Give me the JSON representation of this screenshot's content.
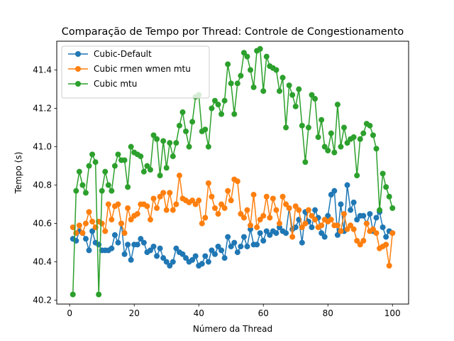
{
  "chart_data": {
    "type": "line",
    "title": "Comparação de Tempo por Thread: Controle de Congestionamento",
    "xlabel": "Número da Thread",
    "ylabel": "Tempo (s)",
    "xlim": [
      -4.0,
      105.0
    ],
    "ylim": [
      40.18,
      41.55
    ],
    "xticks": [
      0,
      20,
      40,
      60,
      80,
      100
    ],
    "yticks": [
      40.2,
      40.4,
      40.6,
      40.8,
      41.0,
      41.2,
      41.4
    ],
    "ytick_labels": [
      "40.2",
      "40.4",
      "40.6",
      "40.8",
      "41.0",
      "41.2",
      "41.4"
    ],
    "legend_position": "top-left",
    "grid": false,
    "x": [
      1,
      2,
      3,
      4,
      5,
      6,
      7,
      8,
      9,
      10,
      11,
      12,
      13,
      14,
      15,
      16,
      17,
      18,
      19,
      20,
      21,
      22,
      23,
      24,
      25,
      26,
      27,
      28,
      29,
      30,
      31,
      32,
      33,
      34,
      35,
      36,
      37,
      38,
      39,
      40,
      41,
      42,
      43,
      44,
      45,
      46,
      47,
      48,
      49,
      50,
      51,
      52,
      53,
      54,
      55,
      56,
      57,
      58,
      59,
      60,
      61,
      62,
      63,
      64,
      65,
      66,
      67,
      68,
      69,
      70,
      71,
      72,
      73,
      74,
      75,
      76,
      77,
      78,
      79,
      80,
      81,
      82,
      83,
      84,
      85,
      86,
      87,
      88,
      89,
      90,
      91,
      92,
      93,
      94,
      95,
      96,
      97,
      98,
      99,
      100
    ],
    "series": [
      {
        "name": "Cubic-Default",
        "color": "#1f77b4",
        "values": [
          40.52,
          40.51,
          40.56,
          40.55,
          40.52,
          40.46,
          40.56,
          40.5,
          40.49,
          40.46,
          40.46,
          40.46,
          40.47,
          40.54,
          40.5,
          40.6,
          40.44,
          40.49,
          40.41,
          40.49,
          40.49,
          40.52,
          40.5,
          40.45,
          40.46,
          40.48,
          40.43,
          40.47,
          40.42,
          40.4,
          40.38,
          40.4,
          40.47,
          40.45,
          40.44,
          40.42,
          40.4,
          40.41,
          40.43,
          40.38,
          40.39,
          40.43,
          40.4,
          40.46,
          40.44,
          40.48,
          40.46,
          40.42,
          40.53,
          40.48,
          40.5,
          40.45,
          40.48,
          40.53,
          40.48,
          40.57,
          40.49,
          40.49,
          40.55,
          40.51,
          40.56,
          40.54,
          40.56,
          40.55,
          40.58,
          40.56,
          40.55,
          40.68,
          40.57,
          40.58,
          40.62,
          40.5,
          40.66,
          40.61,
          40.58,
          40.67,
          40.63,
          40.55,
          40.53,
          40.64,
          40.75,
          40.77,
          40.54,
          40.7,
          40.56,
          40.8,
          40.67,
          40.71,
          40.62,
          40.64,
          40.64,
          40.6,
          40.65,
          40.56,
          40.63,
          40.66,
          40.58,
          40.53,
          40.56,
          40.55
        ]
      },
      {
        "name": "Cubic rmen wmen mtu",
        "color": "#ff7f0e",
        "values": [
          40.58,
          40.55,
          40.59,
          40.55,
          40.6,
          40.66,
          40.61,
          40.58,
          40.61,
          40.6,
          40.56,
          40.7,
          40.62,
          40.69,
          40.7,
          40.6,
          40.55,
          40.68,
          40.62,
          40.64,
          40.65,
          40.7,
          40.7,
          40.69,
          40.62,
          40.73,
          40.68,
          40.74,
          40.76,
          40.67,
          40.76,
          40.67,
          40.7,
          40.85,
          40.73,
          40.72,
          40.71,
          40.72,
          40.7,
          40.72,
          40.6,
          40.63,
          40.81,
          40.74,
          40.68,
          40.65,
          40.7,
          40.68,
          40.77,
          40.72,
          40.83,
          40.82,
          40.65,
          40.63,
          40.67,
          40.59,
          40.75,
          40.58,
          40.62,
          40.64,
          40.74,
          40.63,
          40.73,
          40.67,
          40.6,
          40.74,
          40.7,
          40.68,
          40.53,
          40.69,
          40.67,
          40.58,
          40.6,
          40.67,
          40.64,
          40.62,
          40.58,
          40.59,
          40.62,
          40.61,
          40.62,
          40.59,
          40.59,
          40.56,
          40.65,
          40.57,
          40.59,
          40.57,
          40.51,
          40.49,
          40.51,
          40.6,
          40.56,
          40.57,
          40.55,
          40.47,
          40.48,
          40.49,
          40.38,
          40.55
        ]
      },
      {
        "name": "Cubic mtu",
        "color": "#2ca02c",
        "values": [
          40.23,
          40.77,
          40.87,
          40.8,
          40.76,
          40.9,
          40.96,
          40.92,
          40.23,
          40.77,
          40.87,
          40.8,
          40.77,
          40.9,
          40.96,
          40.93,
          40.93,
          40.79,
          41.0,
          40.97,
          40.96,
          40.95,
          40.87,
          40.9,
          40.88,
          41.06,
          41.04,
          40.85,
          41.03,
          40.89,
          41.02,
          40.95,
          41.02,
          41.11,
          41.18,
          41.08,
          41.0,
          41.13,
          41.26,
          41.27,
          41.08,
          41.09,
          41.0,
          41.2,
          41.24,
          41.22,
          41.17,
          41.24,
          41.43,
          41.33,
          41.17,
          41.33,
          41.37,
          41.49,
          41.47,
          41.4,
          41.31,
          41.5,
          41.51,
          41.29,
          41.47,
          41.42,
          41.41,
          41.4,
          41.29,
          41.36,
          41.1,
          41.32,
          41.27,
          41.21,
          41.3,
          41.11,
          40.92,
          41.1,
          41.27,
          41.25,
          41.05,
          41.14,
          41.0,
          40.98,
          41.07,
          40.97,
          41.22,
          41.0,
          41.1,
          41.02,
          41.04,
          41.05,
          40.85,
          41.04,
          41.07,
          41.12,
          41.11,
          41.06,
          40.99,
          40.67,
          40.86,
          40.79,
          40.74,
          40.68
        ]
      }
    ]
  }
}
